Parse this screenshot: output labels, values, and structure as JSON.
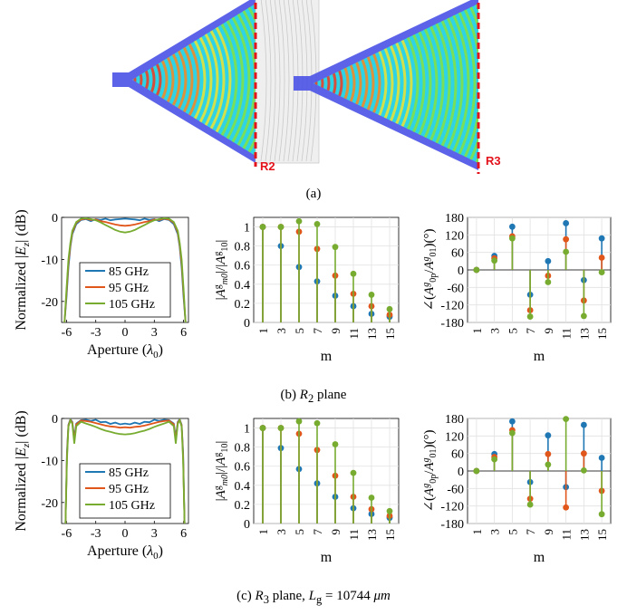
{
  "figure": {
    "panel_a_caption": "(a)",
    "panel_b_caption_prefix": "(b) ",
    "panel_b_caption_var": "R",
    "panel_b_caption_sub": "2",
    "panel_b_caption_suffix": " plane",
    "panel_c_caption_prefix": "(c) ",
    "panel_c_caption_var": "R",
    "panel_c_caption_sub": "3",
    "panel_c_caption_mid": " plane, ",
    "panel_c_caption_eq": "L",
    "panel_c_caption_eq_sub": "g",
    "panel_c_caption_value": " = 10744 ",
    "panel_c_caption_unit": "μm",
    "sim_label_left": "R2",
    "sim_label_right": "R3"
  },
  "colors": {
    "f85": "#1f77b4",
    "f95": "#e0561b",
    "f105": "#77ac30",
    "plane_marker": "#e3121b",
    "grating": "#4a52e6"
  },
  "chart_data": [
    {
      "id": "b-aperture",
      "type": "line",
      "xlabel": "Aperture (λ0)",
      "ylabel": "Normalized |Ez| (dB)",
      "xlim": [
        -6.5,
        6.5
      ],
      "ylim": [
        -25,
        0
      ],
      "xticks": [
        "-6",
        "-3",
        "0",
        "3",
        "6"
      ],
      "yticks": [
        "0",
        "-10",
        "-20"
      ],
      "legend": [
        "85 GHz",
        "95 GHz",
        "105 GHz"
      ],
      "series": [
        {
          "name": "85 GHz",
          "x": [
            -6.2,
            -6.0,
            -5.8,
            -5.6,
            -5.4,
            -5.0,
            -4.5,
            -4.0,
            -3.5,
            -3.0,
            -2.5,
            -2.0,
            -1.5,
            -1.0,
            -0.5,
            0,
            0.5,
            1.0,
            1.5,
            2.0,
            2.5,
            3.0,
            3.5,
            4.0,
            4.5,
            5.0,
            5.4,
            5.6,
            5.8,
            6.0,
            6.2
          ],
          "y": [
            -25,
            -19,
            -12,
            -7,
            -4,
            -1.6,
            -0.6,
            -0.4,
            -0.9,
            -0.4,
            -0.6,
            -0.3,
            -0.7,
            -0.5,
            -0.4,
            -0.3,
            -0.4,
            -0.5,
            -0.7,
            -0.3,
            -0.6,
            -0.4,
            -0.9,
            -0.4,
            -0.6,
            -1.6,
            -4,
            -7,
            -12,
            -19,
            -25
          ]
        },
        {
          "name": "95 GHz",
          "x": [
            -6.2,
            -6.0,
            -5.8,
            -5.6,
            -5.4,
            -5.0,
            -4.5,
            -4.0,
            -3.5,
            -3.0,
            -2.5,
            -2.0,
            -1.5,
            -1.0,
            -0.5,
            0,
            0.5,
            1.0,
            1.5,
            2.0,
            2.5,
            3.0,
            3.5,
            4.0,
            4.5,
            5.0,
            5.4,
            5.6,
            5.8,
            6.0,
            6.2
          ],
          "y": [
            -25,
            -18,
            -11,
            -6.5,
            -3.6,
            -1.3,
            -0.5,
            -0.3,
            -0.6,
            -0.5,
            -0.9,
            -1.1,
            -1.4,
            -1.7,
            -1.9,
            -2.0,
            -1.9,
            -1.7,
            -1.4,
            -1.1,
            -0.9,
            -0.5,
            -0.6,
            -0.3,
            -0.5,
            -1.3,
            -3.6,
            -6.5,
            -11,
            -18,
            -25
          ]
        },
        {
          "name": "105 GHz",
          "x": [
            -6.2,
            -6.0,
            -5.8,
            -5.6,
            -5.4,
            -5.0,
            -4.5,
            -4.0,
            -3.5,
            -3.0,
            -2.5,
            -2.0,
            -1.5,
            -1.0,
            -0.5,
            0,
            0.5,
            1.0,
            1.5,
            2.0,
            2.5,
            3.0,
            3.5,
            4.0,
            4.5,
            5.0,
            5.4,
            5.6,
            5.8,
            6.0,
            6.2
          ],
          "y": [
            -25,
            -17,
            -10,
            -6,
            -3.2,
            -1.1,
            -0.3,
            -0.2,
            -0.4,
            -0.7,
            -1.2,
            -1.8,
            -2.4,
            -3.0,
            -3.4,
            -3.6,
            -3.4,
            -3.0,
            -2.4,
            -1.8,
            -1.2,
            -0.7,
            -0.4,
            -0.2,
            -0.3,
            -1.1,
            -3.2,
            -6,
            -10,
            -17,
            -25
          ]
        }
      ]
    },
    {
      "id": "b-magnitude",
      "type": "stem",
      "xlabel": "m",
      "ylabel": "|Ag m0|/|Ag 10|",
      "xlim": [
        0,
        16
      ],
      "ylim": [
        0,
        1.1
      ],
      "xticks": [
        "1",
        "3",
        "5",
        "7",
        "9",
        "11",
        "13",
        "15"
      ],
      "yticks": [
        "0",
        "0.2",
        "0.4",
        "0.6",
        "0.8",
        "1"
      ],
      "x": [
        1,
        3,
        5,
        7,
        9,
        11,
        13,
        15
      ],
      "series": [
        {
          "name": "85 GHz",
          "values": [
            1.0,
            0.8,
            0.58,
            0.43,
            0.28,
            0.17,
            0.09,
            0.06
          ]
        },
        {
          "name": "95 GHz",
          "values": [
            1.0,
            1.0,
            0.95,
            0.77,
            0.49,
            0.3,
            0.17,
            0.08
          ]
        },
        {
          "name": "105 GHz",
          "values": [
            1.0,
            1.0,
            1.06,
            1.03,
            0.79,
            0.51,
            0.29,
            0.14
          ]
        }
      ]
    },
    {
      "id": "b-phase",
      "type": "stem",
      "xlabel": "m",
      "ylabel": "∠(Ag 0p/Ag 01) (°)",
      "xlim": [
        0,
        16
      ],
      "ylim": [
        -180,
        180
      ],
      "xticks": [
        "1",
        "3",
        "5",
        "7",
        "9",
        "11",
        "13",
        "15"
      ],
      "yticks": [
        "180",
        "120",
        "60",
        "0",
        "-60",
        "-120",
        "-180"
      ],
      "x": [
        1,
        3,
        5,
        7,
        9,
        11,
        13,
        15
      ],
      "series": [
        {
          "name": "85 GHz",
          "values": [
            0,
            48,
            148,
            -85,
            30,
            160,
            -35,
            108
          ]
        },
        {
          "name": "95 GHz",
          "values": [
            0,
            40,
            115,
            -138,
            -20,
            105,
            -105,
            42
          ]
        },
        {
          "name": "105 GHz",
          "values": [
            0,
            32,
            108,
            -160,
            -42,
            62,
            -158,
            -8
          ]
        }
      ]
    },
    {
      "id": "c-aperture",
      "type": "line",
      "xlabel": "Aperture (λ0)",
      "ylabel": "Normalized |Ez| (dB)",
      "xlim": [
        -6.5,
        6.5
      ],
      "ylim": [
        -25,
        0
      ],
      "xticks": [
        "-6",
        "-3",
        "0",
        "3",
        "6"
      ],
      "yticks": [
        "0",
        "-10",
        "-20"
      ],
      "legend": [
        "85 GHz",
        "95 GHz",
        "105 GHz"
      ],
      "series": [
        {
          "name": "85 GHz",
          "x": [
            -6.1,
            -5.95,
            -5.8,
            -5.6,
            -5.4,
            -5.2,
            -5.0,
            -4.5,
            -4.0,
            -3.5,
            -3.0,
            -2.5,
            -2.0,
            -1.5,
            -1.0,
            -0.5,
            0,
            0.5,
            1.0,
            1.5,
            2.0,
            2.5,
            3.0,
            3.5,
            4.0,
            4.5,
            5.0,
            5.2,
            5.4,
            5.6,
            5.8,
            5.95,
            6.1
          ],
          "y": [
            -25,
            -8,
            -1.5,
            -0.2,
            -0.8,
            -4.5,
            -1.2,
            -0.4,
            -0.3,
            -0.6,
            -0.3,
            -0.9,
            -0.8,
            -1.3,
            -1.0,
            -1.4,
            -1.2,
            -1.4,
            -1.0,
            -1.3,
            -0.8,
            -0.9,
            -0.3,
            -0.6,
            -0.3,
            -0.4,
            -1.2,
            -4.5,
            -0.8,
            -0.2,
            -1.5,
            -8,
            -25
          ]
        },
        {
          "name": "95 GHz",
          "x": [
            -6.1,
            -5.95,
            -5.8,
            -5.6,
            -5.4,
            -5.2,
            -5.0,
            -4.5,
            -4.0,
            -3.5,
            -3.0,
            -2.5,
            -2.0,
            -1.5,
            -1.0,
            -0.5,
            0,
            0.5,
            1.0,
            1.5,
            2.0,
            2.5,
            3.0,
            3.5,
            4.0,
            4.5,
            5.0,
            5.2,
            5.4,
            5.6,
            5.8,
            5.95,
            6.1
          ],
          "y": [
            -25,
            -9,
            -1.7,
            -0.3,
            -1.0,
            -5.2,
            -1.4,
            -0.5,
            -0.6,
            -0.8,
            -1.1,
            -1.4,
            -1.7,
            -1.9,
            -2.0,
            -2.2,
            -2.1,
            -2.2,
            -2.0,
            -1.9,
            -1.7,
            -1.4,
            -1.1,
            -0.8,
            -0.6,
            -0.5,
            -1.4,
            -5.2,
            -1.0,
            -0.3,
            -1.7,
            -9,
            -25
          ]
        },
        {
          "name": "105 GHz",
          "x": [
            -6.1,
            -5.95,
            -5.8,
            -5.6,
            -5.4,
            -5.2,
            -5.0,
            -4.5,
            -4.0,
            -3.5,
            -3.0,
            -2.5,
            -2.0,
            -1.5,
            -1.0,
            -0.5,
            0,
            0.5,
            1.0,
            1.5,
            2.0,
            2.5,
            3.0,
            3.5,
            4.0,
            4.5,
            5.0,
            5.2,
            5.4,
            5.6,
            5.8,
            5.95,
            6.1
          ],
          "y": [
            -25,
            -10,
            -2.0,
            -0.4,
            -1.3,
            -6.0,
            -1.8,
            -0.8,
            -1.2,
            -1.6,
            -2.0,
            -2.5,
            -2.9,
            -3.2,
            -3.5,
            -3.7,
            -3.8,
            -3.7,
            -3.5,
            -3.2,
            -2.9,
            -2.5,
            -2.0,
            -1.6,
            -1.2,
            -0.8,
            -1.8,
            -6.0,
            -1.3,
            -0.4,
            -2.0,
            -10,
            -25
          ]
        }
      ]
    },
    {
      "id": "c-magnitude",
      "type": "stem",
      "xlabel": "m",
      "ylabel": "|Ag m0|/|Ag 10|",
      "xlim": [
        0,
        16
      ],
      "ylim": [
        0,
        1.1
      ],
      "xticks": [
        "1",
        "3",
        "5",
        "7",
        "9",
        "11",
        "13",
        "15"
      ],
      "yticks": [
        "0",
        "0.2",
        "0.4",
        "0.6",
        "0.8",
        "1"
      ],
      "x": [
        1,
        3,
        5,
        7,
        9,
        11,
        13,
        15
      ],
      "series": [
        {
          "name": "85 GHz",
          "values": [
            1.0,
            0.79,
            0.57,
            0.42,
            0.28,
            0.16,
            0.1,
            0.06
          ]
        },
        {
          "name": "95 GHz",
          "values": [
            1.0,
            1.0,
            0.94,
            0.77,
            0.5,
            0.28,
            0.15,
            0.08
          ]
        },
        {
          "name": "105 GHz",
          "values": [
            1.0,
            1.0,
            1.07,
            1.05,
            0.83,
            0.53,
            0.27,
            0.13
          ]
        }
      ]
    },
    {
      "id": "c-phase",
      "type": "stem",
      "xlabel": "m",
      "ylabel": "∠(Ag 0p/Ag 01) (°)",
      "xlim": [
        0,
        16
      ],
      "ylim": [
        -180,
        180
      ],
      "xticks": [
        "1",
        "3",
        "5",
        "7",
        "9",
        "11",
        "13",
        "15"
      ],
      "yticks": [
        "180",
        "120",
        "60",
        "0",
        "-60",
        "-120",
        "-180"
      ],
      "x": [
        1,
        3,
        5,
        7,
        9,
        11,
        13,
        15
      ],
      "series": [
        {
          "name": "85 GHz",
          "values": [
            0,
            58,
            170,
            -38,
            122,
            -55,
            158,
            45
          ]
        },
        {
          "name": "95 GHz",
          "values": [
            0,
            48,
            140,
            -95,
            58,
            -125,
            60,
            -68
          ]
        },
        {
          "name": "105 GHz",
          "values": [
            0,
            40,
            130,
            -115,
            22,
            178,
            2,
            -148
          ]
        }
      ]
    }
  ]
}
